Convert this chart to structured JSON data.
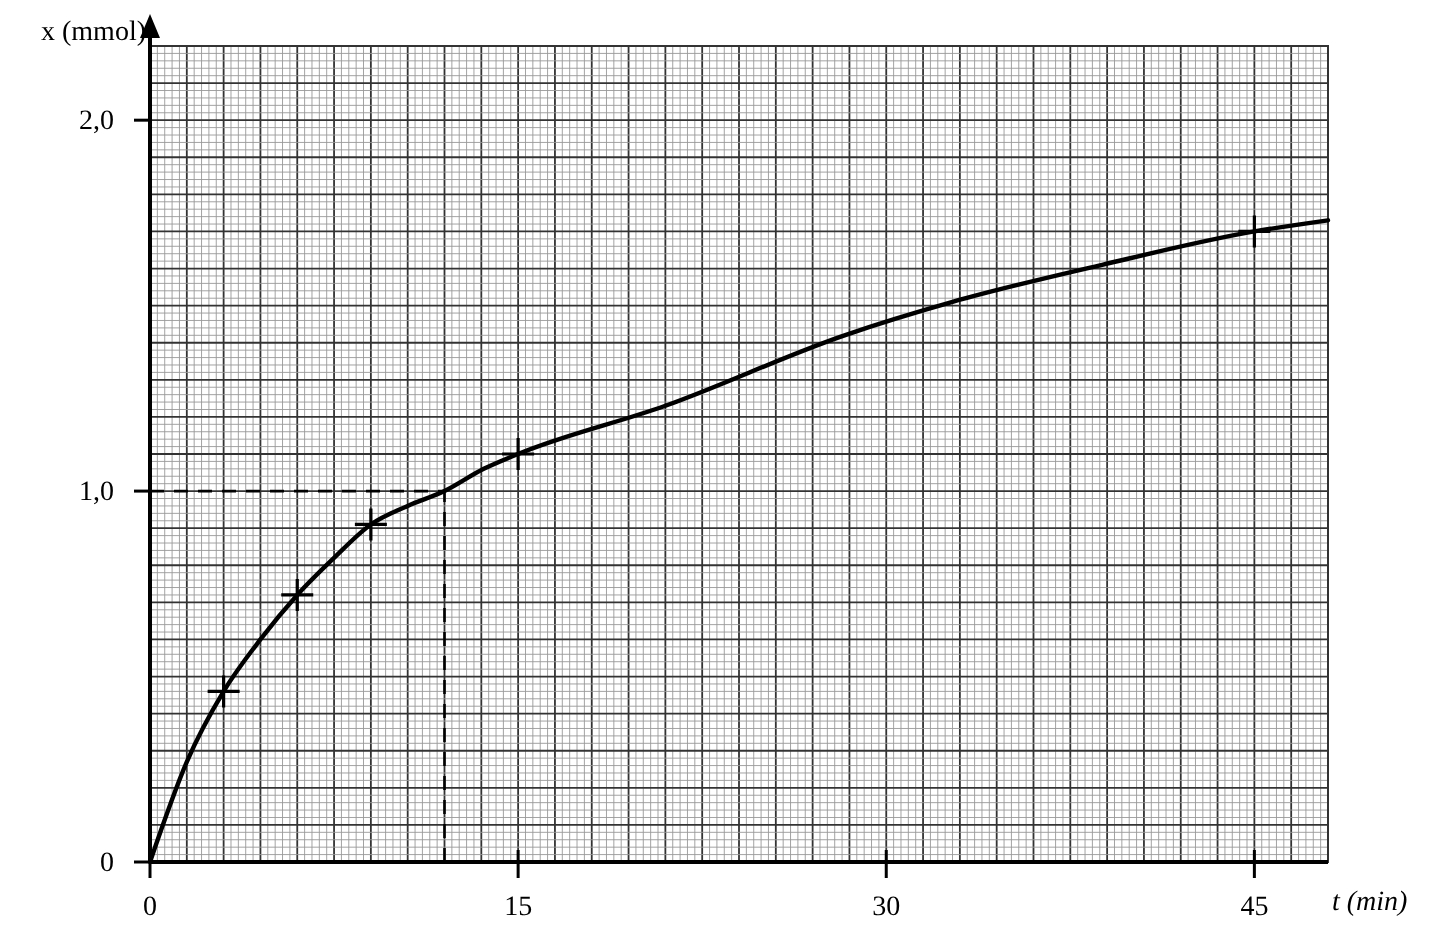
{
  "chart_data": {
    "type": "line",
    "xlabel": "t (min)",
    "ylabel": "x (mmol)",
    "xlim": [
      0,
      48
    ],
    "ylim": [
      0,
      2.2
    ],
    "xticks": [
      0,
      15,
      30,
      45
    ],
    "yticks": [
      0,
      {
        "value": 1,
        "label": "1,0"
      },
      {
        "value": 2,
        "label": "2,0"
      }
    ],
    "grid": true,
    "series": [
      {
        "color": "#000000",
        "marker": "none",
        "line_style": "solid",
        "x": [
          0,
          1.5,
          3,
          4.5,
          6,
          7.5,
          9,
          10.5,
          12,
          13.6,
          15,
          21,
          28.3,
          32.7,
          38.8,
          45,
          48
        ],
        "values": [
          0,
          0.27,
          0.46,
          0.6,
          0.72,
          0.82,
          0.91,
          0.96,
          1.0,
          1.06,
          1.1,
          1.23,
          1.42,
          1.51,
          1.61,
          1.7,
          1.73
        ]
      },
      {
        "type": "scatter",
        "color": "#000000",
        "marker": "cross",
        "x": [
          3,
          6,
          9,
          15,
          45
        ],
        "values": [
          0.46,
          0.72,
          0.91,
          1.1,
          1.7
        ]
      }
    ],
    "ref_lines": [
      {
        "axis": "y",
        "value": 1,
        "color": "#000000",
        "line_style": "dashed"
      },
      {
        "axis": "x",
        "value": 12,
        "color": "#000000",
        "line_style": "dashed"
      }
    ]
  }
}
